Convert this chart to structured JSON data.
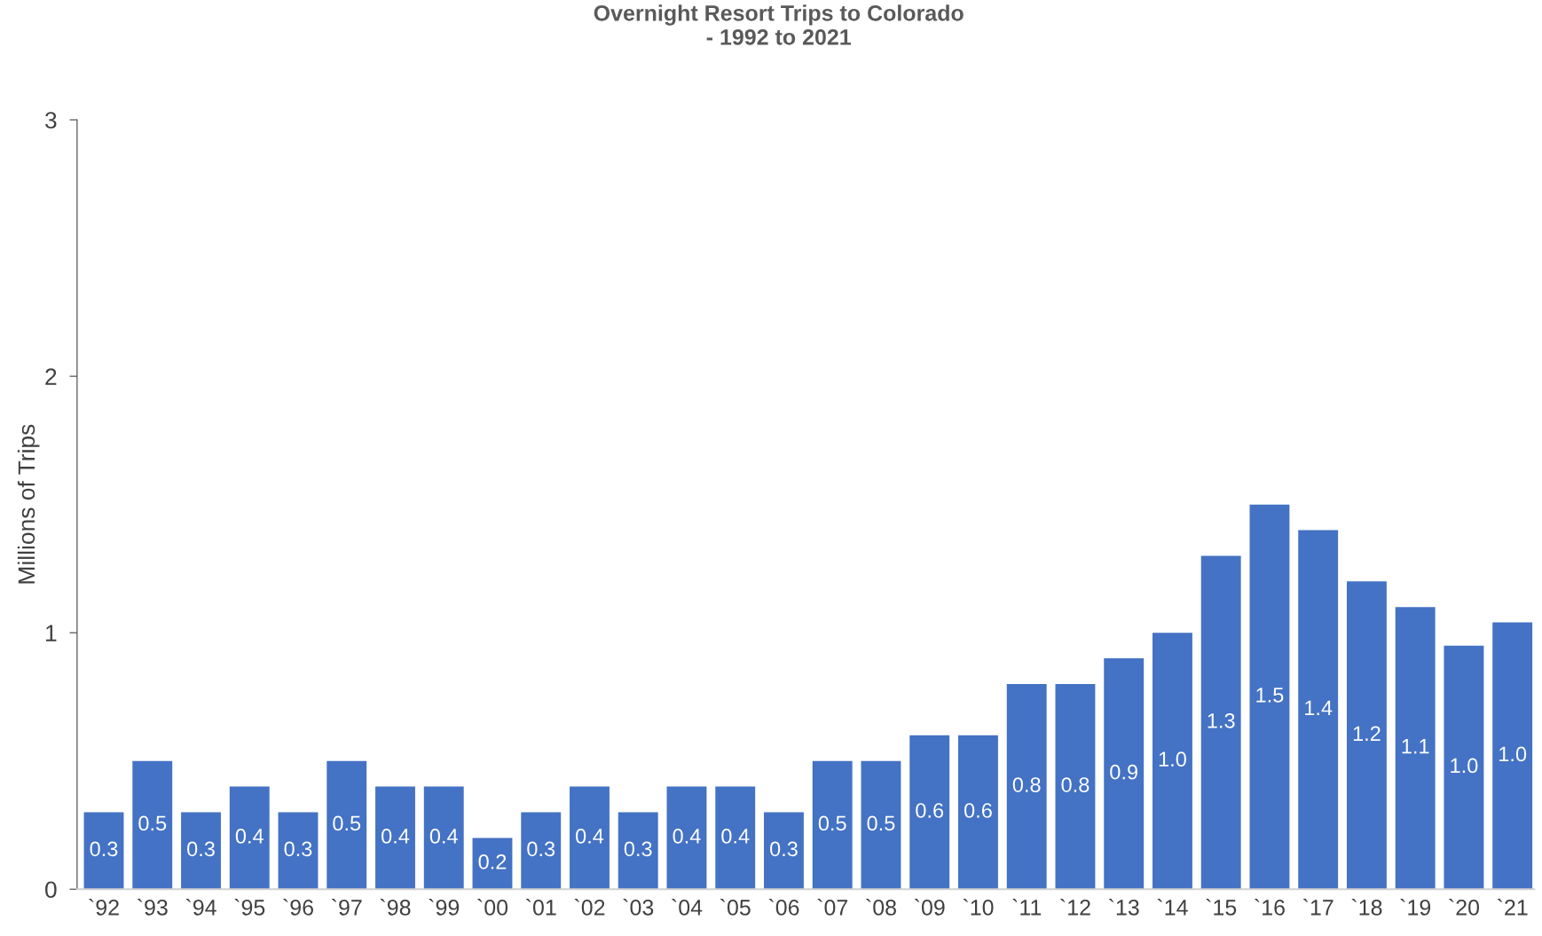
{
  "chart_data": {
    "type": "bar",
    "title": "Overnight Resort Trips to Colorado\n- 1992 to 2021",
    "ylabel": "Millions of Trips",
    "categories": [
      "`92",
      "`93",
      "`94",
      "`95",
      "`96",
      "`97",
      "`98",
      "`99",
      "`00",
      "`01",
      "`02",
      "`03",
      "`04",
      "`05",
      "`06",
      "`07",
      "`08",
      "`09",
      "`10",
      "`11",
      "`12",
      "`13",
      "`14",
      "`15",
      "`16",
      "`17",
      "`18",
      "`19",
      "`20",
      "`21"
    ],
    "values": [
      0.3,
      0.5,
      0.3,
      0.4,
      0.3,
      0.5,
      0.4,
      0.4,
      0.2,
      0.3,
      0.4,
      0.3,
      0.4,
      0.4,
      0.3,
      0.5,
      0.5,
      0.6,
      0.6,
      0.8,
      0.8,
      0.9,
      1.0,
      1.3,
      1.5,
      1.4,
      1.2,
      1.1,
      0.95,
      1.04
    ],
    "value_labels": [
      "0.3",
      "0.5",
      "0.3",
      "0.4",
      "0.3",
      "0.5",
      "0.4",
      "0.4",
      "0.2",
      "0.3",
      "0.4",
      "0.3",
      "0.4",
      "0.4",
      "0.3",
      "0.5",
      "0.5",
      "0.6",
      "0.6",
      "0.8",
      "0.8",
      "0.9",
      "1.0",
      "1.3",
      "1.5",
      "1.4",
      "1.2",
      "1.1",
      "1.0",
      "1.0"
    ],
    "color": "#4472c4",
    "ylim": [
      0,
      3
    ],
    "yticks": [
      0,
      1,
      2,
      3
    ],
    "grid": false,
    "legend": false
  }
}
